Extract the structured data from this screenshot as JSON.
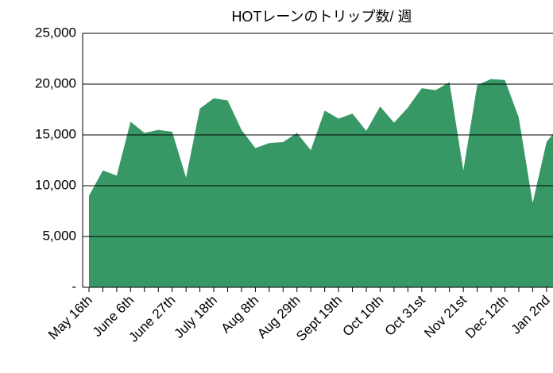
{
  "chart_data": {
    "type": "area",
    "title": "HOTレーンのトリップ数/ 週",
    "categories": [
      "May 16th",
      null,
      null,
      "June 6th",
      null,
      null,
      "June 27th",
      null,
      null,
      "July 18th",
      null,
      null,
      "Aug 8th",
      null,
      null,
      "Aug 29th",
      null,
      null,
      "Sept 19th",
      null,
      null,
      "Oct 10th",
      null,
      null,
      "Oct 31st",
      null,
      null,
      "Nov 21st",
      null,
      null,
      "Dec 12th",
      null,
      null,
      "Jan 2nd",
      null
    ],
    "values": [
      9000,
      11500,
      11000,
      16300,
      15200,
      15500,
      15300,
      10800,
      17600,
      18600,
      18400,
      15500,
      13700,
      14200,
      14300,
      15200,
      13500,
      17400,
      16600,
      17100,
      15400,
      17800,
      16200,
      17700,
      19600,
      19400,
      20200,
      11500,
      19900,
      20500,
      20400,
      16700,
      8300,
      14300,
      16000
    ],
    "color": "#379866",
    "ylim": [
      0,
      25000
    ],
    "yticks": [
      {
        "value": 0,
        "label": "-"
      },
      {
        "value": 5000,
        "label": "5,000"
      },
      {
        "value": 10000,
        "label": "10,000"
      },
      {
        "value": 15000,
        "label": "15,000"
      },
      {
        "value": 20000,
        "label": "20,000"
      },
      {
        "value": 25000,
        "label": "25,000"
      }
    ],
    "grid": true
  }
}
